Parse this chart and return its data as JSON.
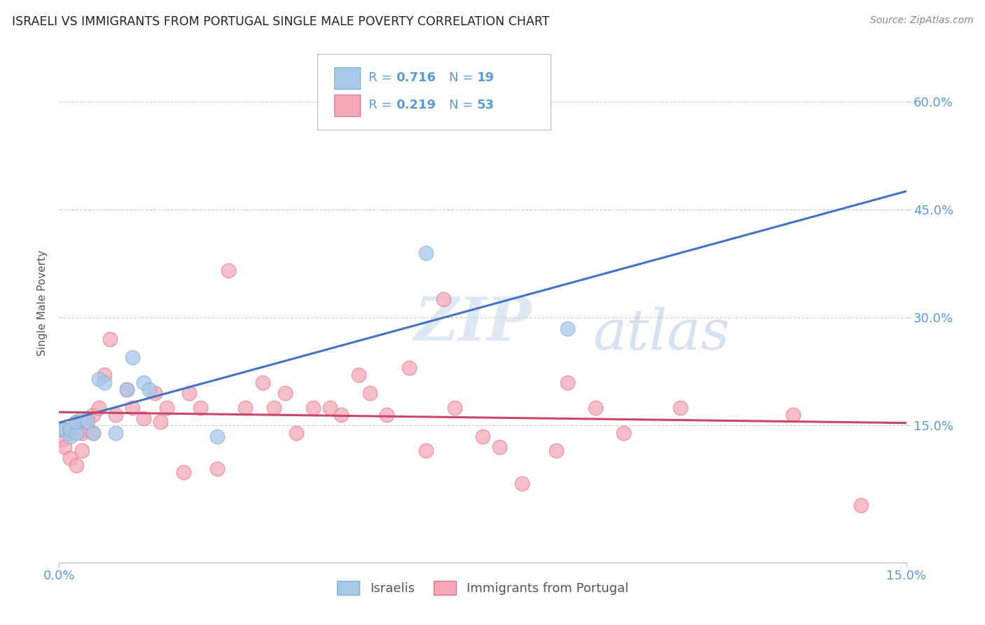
{
  "title": "ISRAELI VS IMMIGRANTS FROM PORTUGAL SINGLE MALE POVERTY CORRELATION CHART",
  "source": "Source: ZipAtlas.com",
  "ylabel": "Single Male Poverty",
  "watermark": "ZIPatlas",
  "xlim": [
    0.0,
    0.15
  ],
  "ylim": [
    -0.04,
    0.68
  ],
  "ytick_labels_right": [
    "60.0%",
    "45.0%",
    "30.0%",
    "15.0%"
  ],
  "ytick_vals_right": [
    0.6,
    0.45,
    0.3,
    0.15
  ],
  "israelis_R": "0.716",
  "israelis_N": "19",
  "portugal_R": "0.219",
  "portugal_N": "53",
  "israeli_color": "#a8c8e8",
  "portugal_color": "#f4a8b8",
  "israeli_edge_color": "#7bafd4",
  "portugal_edge_color": "#e87090",
  "israeli_line_color": "#4472c4",
  "portugal_line_color": "#cc4466",
  "background_color": "#ffffff",
  "grid_color": "#cccccc",
  "axis_label_color": "#5b9bd5",
  "title_color": "#222222",
  "legend_text_color": "#5b9bd5",
  "israelis_x": [
    0.0005,
    0.001,
    0.002,
    0.002,
    0.003,
    0.003,
    0.004,
    0.005,
    0.006,
    0.007,
    0.008,
    0.01,
    0.012,
    0.013,
    0.015,
    0.016,
    0.028,
    0.065,
    0.09
  ],
  "israelis_y": [
    0.145,
    0.145,
    0.135,
    0.145,
    0.14,
    0.155,
    0.16,
    0.155,
    0.14,
    0.215,
    0.21,
    0.14,
    0.2,
    0.245,
    0.21,
    0.2,
    0.135,
    0.39,
    0.285
  ],
  "portugal_x": [
    0.0005,
    0.001,
    0.001,
    0.002,
    0.002,
    0.003,
    0.003,
    0.004,
    0.004,
    0.005,
    0.005,
    0.006,
    0.006,
    0.007,
    0.008,
    0.009,
    0.01,
    0.012,
    0.013,
    0.015,
    0.017,
    0.018,
    0.019,
    0.022,
    0.023,
    0.025,
    0.028,
    0.03,
    0.033,
    0.036,
    0.038,
    0.04,
    0.042,
    0.045,
    0.048,
    0.05,
    0.053,
    0.055,
    0.058,
    0.062,
    0.065,
    0.068,
    0.07,
    0.075,
    0.078,
    0.082,
    0.088,
    0.09,
    0.095,
    0.1,
    0.11,
    0.13,
    0.142
  ],
  "portugal_y": [
    0.13,
    0.145,
    0.12,
    0.14,
    0.105,
    0.155,
    0.095,
    0.14,
    0.115,
    0.16,
    0.145,
    0.165,
    0.14,
    0.175,
    0.22,
    0.27,
    0.165,
    0.2,
    0.175,
    0.16,
    0.195,
    0.155,
    0.175,
    0.085,
    0.195,
    0.175,
    0.09,
    0.365,
    0.175,
    0.21,
    0.175,
    0.195,
    0.14,
    0.175,
    0.175,
    0.165,
    0.22,
    0.195,
    0.165,
    0.23,
    0.115,
    0.325,
    0.175,
    0.135,
    0.12,
    0.07,
    0.115,
    0.21,
    0.175,
    0.14,
    0.175,
    0.165,
    0.04
  ]
}
